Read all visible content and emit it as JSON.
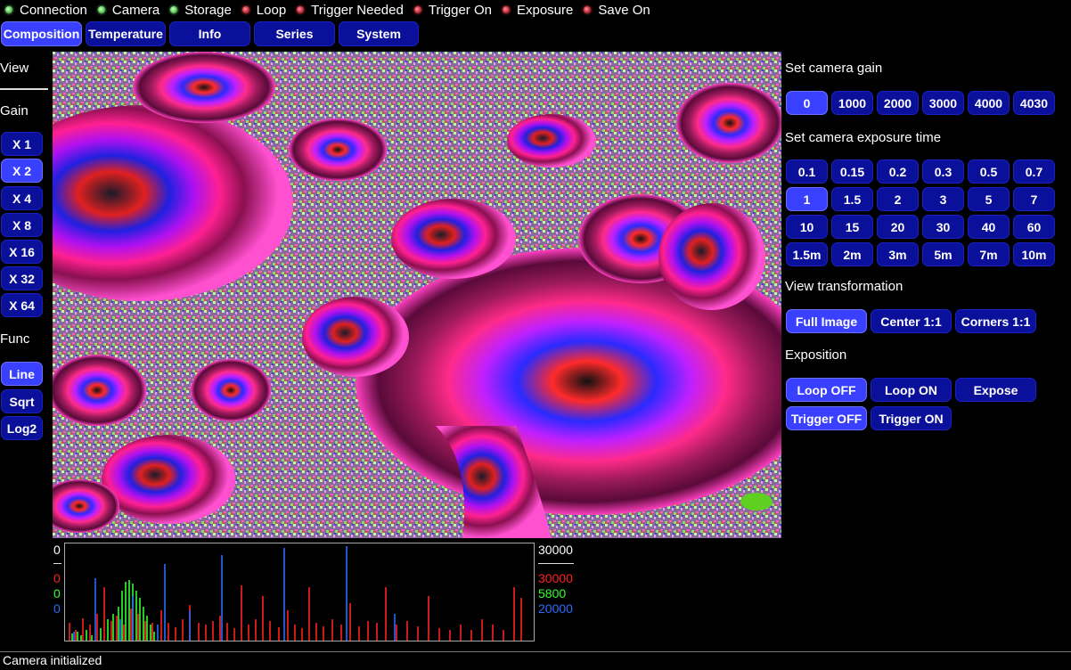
{
  "status": [
    {
      "label": "Connection",
      "state": "green"
    },
    {
      "label": "Camera",
      "state": "green"
    },
    {
      "label": "Storage",
      "state": "green"
    },
    {
      "label": "Loop",
      "state": "red"
    },
    {
      "label": "Trigger Needed",
      "state": "red"
    },
    {
      "label": "Trigger On",
      "state": "red"
    },
    {
      "label": "Exposure",
      "state": "red"
    },
    {
      "label": "Save On",
      "state": "red"
    }
  ],
  "tabs": [
    "Composition",
    "Temperature",
    "Info",
    "Series",
    "System"
  ],
  "left": {
    "view_label": "View",
    "gain_label": "Gain",
    "gain_buttons": [
      "X 1",
      "X 2",
      "X 4",
      "X 8",
      "X 16",
      "X 32",
      "X 64"
    ],
    "func_label": "Func",
    "func_buttons": [
      "Line",
      "Sqrt",
      "Log2"
    ]
  },
  "right": {
    "gain_title": "Set camera gain",
    "gain_values": [
      "0",
      "1000",
      "2000",
      "3000",
      "4000",
      "4030"
    ],
    "exposure_title": "Set camera exposure time",
    "exposure_values": [
      "0.1",
      "0.15",
      "0.2",
      "0.3",
      "0.5",
      "0.7",
      "1",
      "1.5",
      "2",
      "3",
      "5",
      "7",
      "10",
      "15",
      "20",
      "30",
      "40",
      "60",
      "1.5m",
      "2m",
      "3m",
      "5m",
      "7m",
      "10m"
    ],
    "view_title": "View transformation",
    "view_buttons": [
      "Full Image",
      "Center 1:1",
      "Corners 1:1"
    ],
    "exposition_title": "Exposition",
    "loop_off": "Loop OFF",
    "loop_on": "Loop ON",
    "expose": "Expose",
    "trigger_off": "Trigger OFF",
    "trigger_on": "Trigger ON"
  },
  "histogram": {
    "left_top": "0",
    "left_r": "0",
    "left_g": "0",
    "left_b": "0",
    "right_top": "30000",
    "right_r": "30000",
    "right_g": "5800",
    "right_b": "20000"
  },
  "colors": {
    "red": "#ff2020",
    "green": "#30ff30",
    "blue": "#2b6bff"
  },
  "footer_message": "Camera initialized"
}
